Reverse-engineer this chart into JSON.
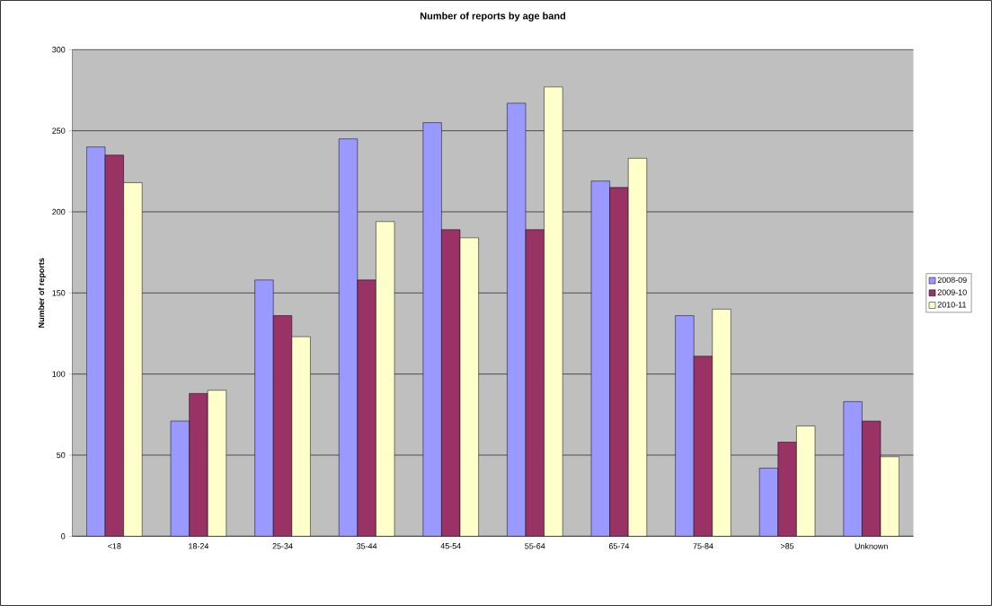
{
  "chart_data": {
    "type": "bar",
    "title": "Number of reports by age band",
    "ylabel": "Number of reports",
    "categories": [
      "<18",
      "18-24",
      "25-34",
      "35-44",
      "45-54",
      "55-64",
      "65-74",
      "75-84",
      ">85",
      "Unknown"
    ],
    "series": [
      {
        "name": "2008-09",
        "color": "#9999ff",
        "values": [
          240,
          71,
          158,
          245,
          255,
          267,
          219,
          136,
          42,
          83
        ]
      },
      {
        "name": "2009-10",
        "color": "#993366",
        "values": [
          235,
          88,
          136,
          158,
          189,
          189,
          215,
          111,
          58,
          71
        ]
      },
      {
        "name": "2010-11",
        "color": "#ffffcc",
        "values": [
          218,
          90,
          123,
          194,
          184,
          277,
          233,
          140,
          68,
          49
        ]
      }
    ],
    "ylim": [
      0,
      300
    ],
    "yticks": [
      0,
      50,
      100,
      150,
      200,
      250,
      300
    ],
    "grid": "y",
    "legend": "right"
  }
}
